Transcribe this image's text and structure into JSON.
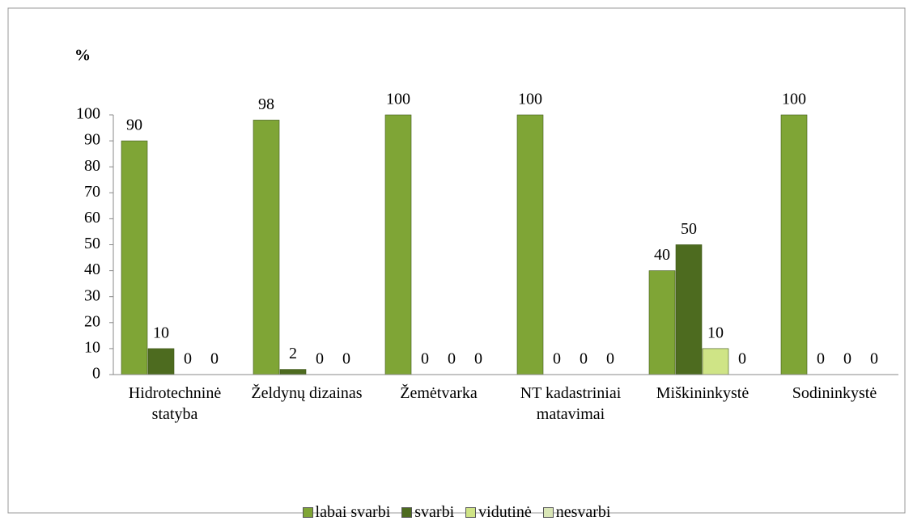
{
  "chart_data": {
    "type": "bar",
    "y_label": "%",
    "categories": [
      "Hidrotechninė statyba",
      "Želdynų dizainas",
      "Žemėtvarka",
      "NT kadastriniai matavimai",
      "Miškininkystė",
      "Sodininkystė"
    ],
    "series": [
      {
        "name": "labai svarbi",
        "color": "#7fa536",
        "values": [
          90,
          98,
          100,
          100,
          40,
          100
        ]
      },
      {
        "name": "svarbi",
        "color": "#4d6b1f",
        "values": [
          10,
          2,
          0,
          0,
          50,
          0
        ]
      },
      {
        "name": "vidutinė",
        "color": "#cfe486",
        "values": [
          0,
          0,
          0,
          0,
          10,
          0
        ]
      },
      {
        "name": "nesvarbi",
        "color": "#d9e6b6",
        "values": [
          0,
          0,
          0,
          0,
          0,
          0
        ]
      }
    ],
    "ylim": [
      0,
      100
    ],
    "yticks": [
      0,
      10,
      20,
      30,
      40,
      50,
      60,
      70,
      80,
      90,
      100
    ],
    "grid": false,
    "legend": "bottom"
  }
}
